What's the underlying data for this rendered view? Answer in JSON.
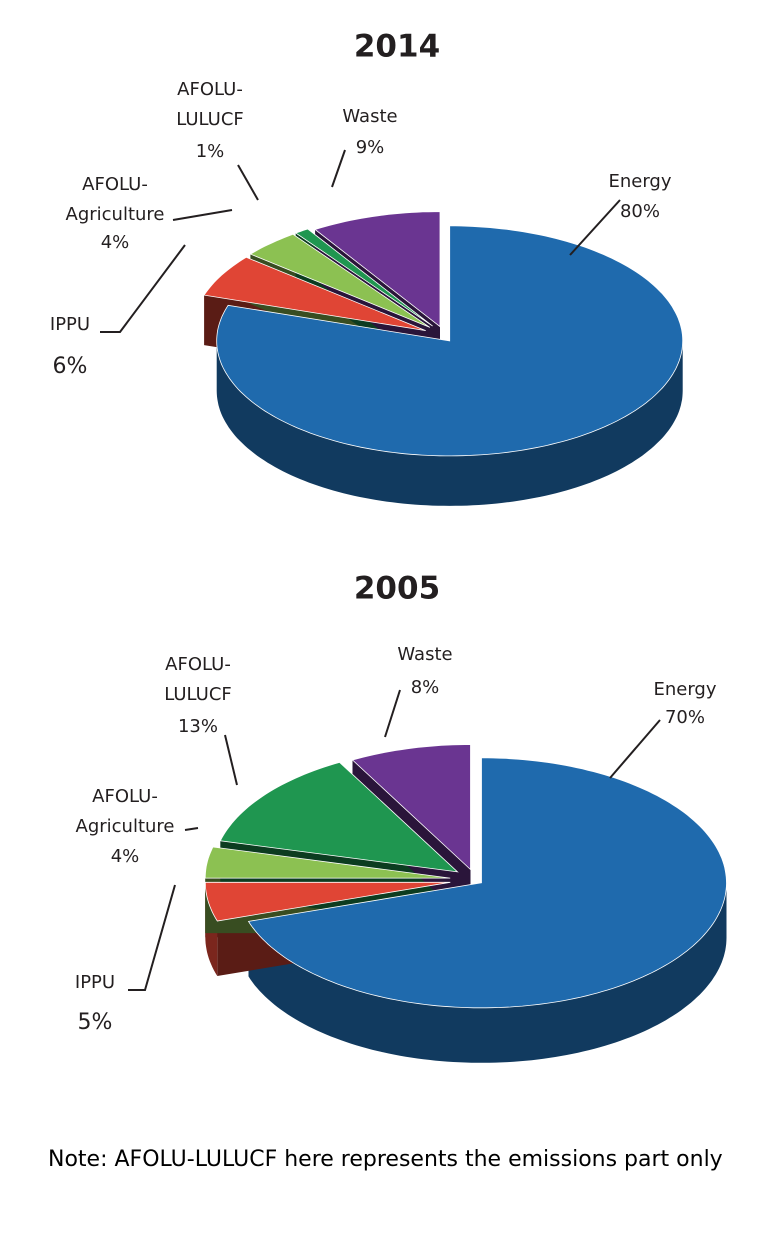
{
  "chart_data": [
    {
      "type": "pie",
      "title": "2014",
      "categories": [
        "Energy",
        "IPPU",
        "AFOLU-Agriculture",
        "AFOLU-LULUCF",
        "Waste"
      ],
      "values": [
        80,
        6,
        4,
        1,
        9
      ],
      "value_labels": [
        "80%",
        "6%",
        "4%",
        "1%",
        "9%"
      ],
      "colors": [
        "#1f6aad",
        "#e04535",
        "#8cc152",
        "#1f9650",
        "#6a3591"
      ]
    },
    {
      "type": "pie",
      "title": "2005",
      "categories": [
        "Energy",
        "IPPU",
        "AFOLU-Agriculture",
        "AFOLU-LULUCF",
        "Waste"
      ],
      "values": [
        70,
        5,
        4,
        13,
        8
      ],
      "value_labels": [
        "70%",
        "5%",
        "4%",
        "13%",
        "8%"
      ],
      "colors": [
        "#1f6aad",
        "#e04535",
        "#8cc152",
        "#1f9650",
        "#6a3591"
      ]
    }
  ],
  "note": "Note: AFOLU-LULUCF here represents the emissions part only"
}
